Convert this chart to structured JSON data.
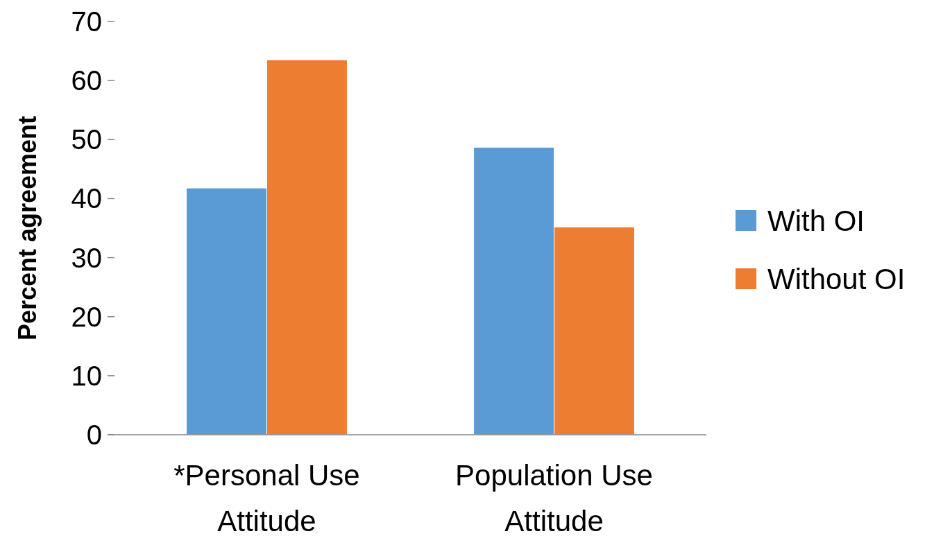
{
  "chart_data": {
    "type": "bar",
    "ylabel": "Percent agreement",
    "categories": [
      "*Personal Use Attitude",
      "Population Use Attitude"
    ],
    "series": [
      {
        "name": "With OI",
        "color": "#5b9bd5",
        "values": [
          41.8,
          48.7
        ]
      },
      {
        "name": "Without OI",
        "color": "#ed7d31",
        "values": [
          63.5,
          35.2
        ]
      }
    ],
    "ylim": [
      0,
      70
    ],
    "yticks": [
      0,
      10,
      20,
      30,
      40,
      50,
      60,
      70
    ],
    "grid": false,
    "legend": "right"
  }
}
